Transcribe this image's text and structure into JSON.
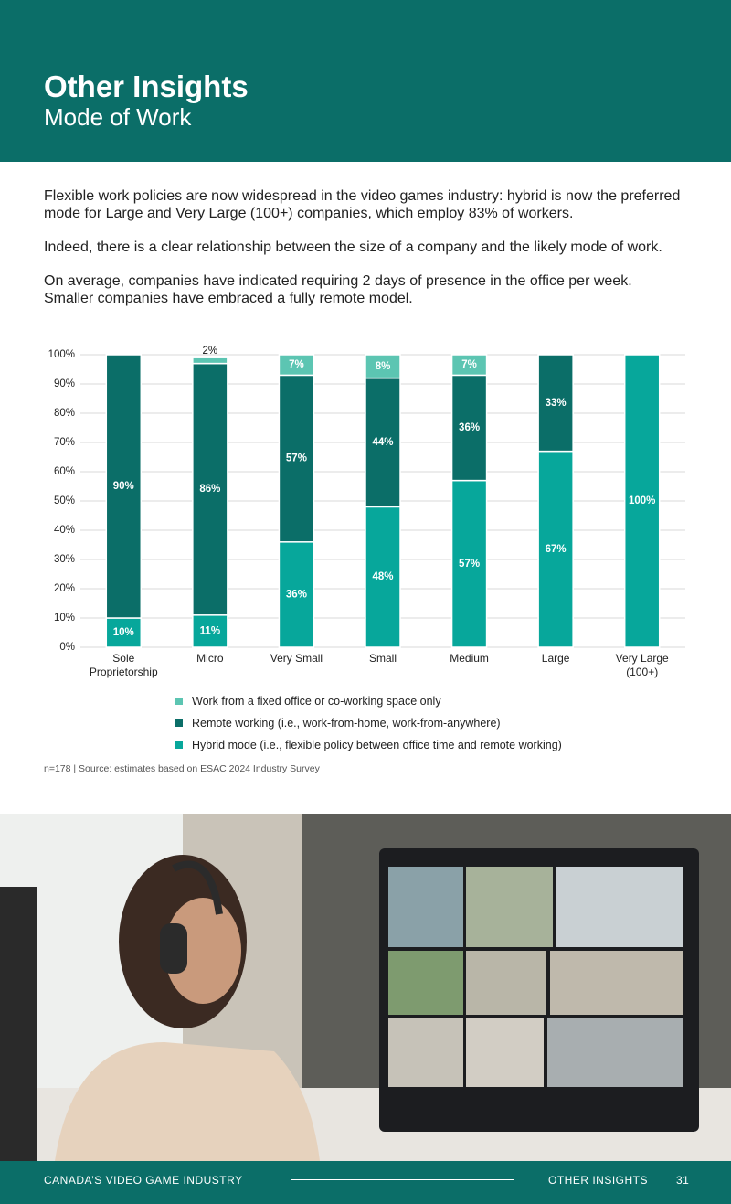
{
  "header": {
    "title": "Other Insights",
    "subtitle": "Mode of Work"
  },
  "paragraphs": [
    [
      "Flexible work policies are now widespread in the video games industry: hybrid is now the preferred mode for Large and Very Large (100+) companies, which employ 83% of workers."
    ],
    [
      "Indeed, there is a clear relationship between the size of a company and the likely mode of work."
    ],
    [
      "On average, companies have indicated requiring 2 days of presence in the office per week.",
      "Smaller companies have embraced a fully remote model."
    ]
  ],
  "chart_data": {
    "type": "stacked_bar",
    "categories": [
      "Sole Proprietorship",
      "Micro",
      "Very Small",
      "Small",
      "Medium",
      "Large",
      "Very Large (100+)"
    ],
    "series": [
      {
        "name": "Work from a fixed office or co-working space only",
        "color": "#5cc5b2",
        "values": [
          null,
          2,
          7,
          8,
          7,
          null,
          null
        ],
        "value_labels": [
          null,
          "2%",
          "7%",
          "8%",
          "7%",
          null,
          null
        ]
      },
      {
        "name": "Remote working (i.e., work-from-home, work-from-anywhere)",
        "color": "#0b6e68",
        "values": [
          90,
          86,
          57,
          44,
          36,
          33,
          null
        ],
        "value_labels": [
          "90%",
          "86%",
          "57%",
          "44%",
          "36%",
          "33%",
          null
        ]
      },
      {
        "name": "Hybrid mode (i.e., flexible policy between office time and remote working)",
        "color": "#07a79b",
        "values": [
          10,
          11,
          36,
          48,
          57,
          67,
          100
        ],
        "value_labels": [
          "10%",
          "11%",
          "36%",
          "48%",
          "57%",
          "67%",
          "100%"
        ]
      }
    ],
    "ylim": [
      0,
      100
    ],
    "yticks": [
      {
        "value": 0,
        "label": "0%"
      },
      {
        "value": 10,
        "label": "10%"
      },
      {
        "value": 20,
        "label": "20%"
      },
      {
        "value": 30,
        "label": "30%"
      },
      {
        "value": 40,
        "label": "40%"
      },
      {
        "value": 50,
        "label": "50%"
      },
      {
        "value": 60,
        "label": "60%"
      },
      {
        "value": 70,
        "label": "70%"
      },
      {
        "value": 80,
        "label": "80%"
      },
      {
        "value": 90,
        "label": "90%"
      },
      {
        "value": 100,
        "label": "100%"
      }
    ],
    "grid": true
  },
  "source": "n=178 | Source: estimates based on ESAC 2024 Industry Survey",
  "footer": {
    "left": "CANADA’S VIDEO GAME INDUSTRY",
    "right": "OTHER INSIGHTS",
    "page": "31"
  }
}
